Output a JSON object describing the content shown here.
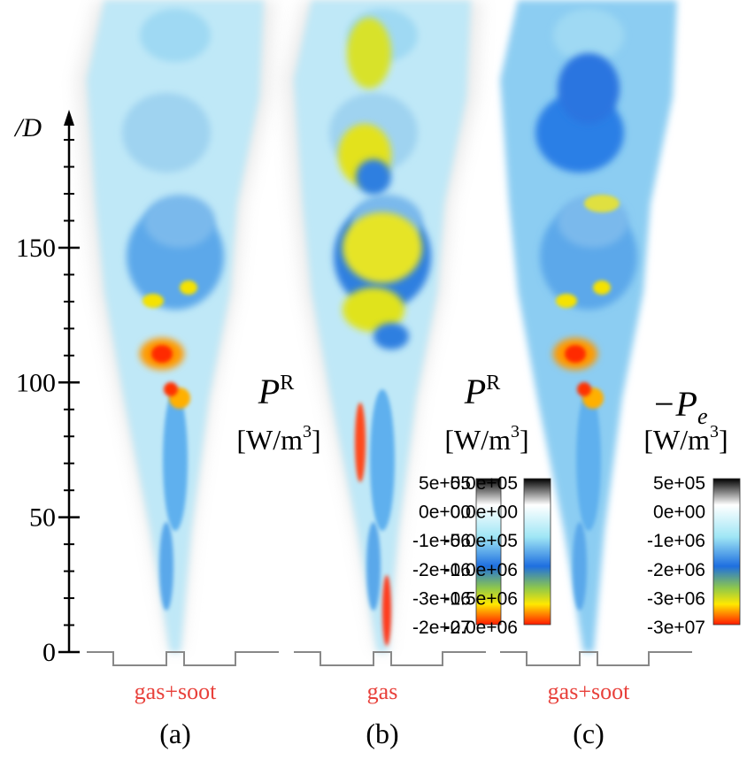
{
  "axis": {
    "label": "/D",
    "lim": [
      0,
      200
    ],
    "ticks": [
      0,
      50,
      100,
      150
    ],
    "minor_ticks": [
      10,
      20,
      30,
      40,
      60,
      70,
      80,
      90,
      110,
      120,
      130,
      140,
      160,
      170,
      180,
      190
    ]
  },
  "panels": [
    {
      "symbol": "P",
      "superscript": "R",
      "subscript": null,
      "unit_open": "[W/m",
      "unit_sup": "3",
      "unit_close": "]",
      "colorbar_labels": [
        "5e+05",
        "0e+00",
        "-1e+06",
        "-2e+06",
        "-3e+06",
        "-2e+07"
      ],
      "caption": "gas+soot",
      "tag": "(a)"
    },
    {
      "symbol": "P",
      "superscript": "R",
      "subscript": null,
      "unit_open": "[W/m",
      "unit_sup": "3",
      "unit_close": "]",
      "colorbar_labels": [
        "5.0e+05",
        "0.0e+00",
        "-5.0e+05",
        "-1.0e+06",
        "-1.5e+06",
        "-2.0e+06"
      ],
      "caption": "gas",
      "tag": "(b)"
    },
    {
      "symbol": "−P",
      "superscript": null,
      "subscript": "e",
      "unit_open": "[W/m",
      "unit_sup": "3",
      "unit_close": "]",
      "colorbar_labels": [
        "5e+05",
        "0e+00",
        "-1e+06",
        "-2e+06",
        "-3e+06",
        "-3e+07"
      ],
      "caption": "gas+soot",
      "tag": "(c)"
    }
  ]
}
